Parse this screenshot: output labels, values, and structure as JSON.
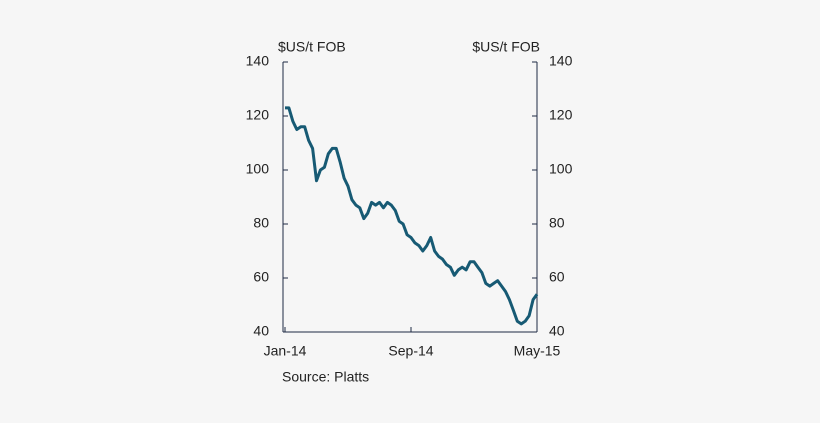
{
  "chart_data": {
    "type": "line",
    "y_label": "$US/t FOB",
    "y2_label": "$US/t FOB",
    "source": "Source: Platts",
    "categories": [
      "Jan-14",
      null,
      null,
      null,
      null,
      null,
      null,
      null,
      null,
      null,
      null,
      null,
      null,
      null,
      null,
      null,
      null,
      null,
      null,
      null,
      null,
      null,
      null,
      null,
      null,
      null,
      null,
      null,
      null,
      null,
      null,
      null,
      "Sep-14",
      null,
      null,
      null,
      null,
      null,
      null,
      null,
      null,
      null,
      null,
      null,
      null,
      null,
      null,
      null,
      null,
      null,
      null,
      null,
      null,
      null,
      null,
      null,
      null,
      null,
      null,
      null,
      null,
      null,
      null,
      null,
      "May-15"
    ],
    "values": [
      123,
      123,
      118,
      115,
      116,
      116,
      111,
      108,
      96,
      100,
      101,
      106,
      108,
      108,
      103,
      97,
      94,
      89,
      87,
      86,
      82,
      84,
      88,
      87,
      88,
      86,
      88,
      87,
      85,
      81,
      80,
      76,
      75,
      73,
      72,
      70,
      72,
      75,
      70,
      68,
      67,
      65,
      64,
      61,
      63,
      64,
      63,
      66,
      66,
      64,
      62,
      58,
      57,
      58,
      59,
      57,
      55,
      52,
      48,
      44,
      43,
      44,
      46,
      52,
      54
    ],
    "color": "#175a74",
    "ylim": [
      40,
      140
    ],
    "yticks": [
      40,
      60,
      80,
      100,
      120,
      140
    ],
    "y2lim": [
      40,
      140
    ],
    "y2ticks": [
      40,
      60,
      80,
      100,
      120,
      140
    ]
  }
}
